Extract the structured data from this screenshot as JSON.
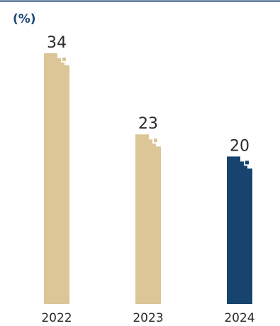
{
  "chart_data": {
    "type": "bar",
    "unit_label": "(%)",
    "categories": [
      "2022",
      "2023",
      "2024"
    ],
    "values": [
      34,
      23,
      20
    ],
    "ylim": [
      0,
      34
    ],
    "grid": false,
    "legend": "none"
  },
  "colors": {
    "top_rule": "#274b79",
    "unit_label": "#1f4673",
    "bar_past": "#dcc597",
    "bar_current": "#17446f",
    "text": "#2b2b2b"
  }
}
